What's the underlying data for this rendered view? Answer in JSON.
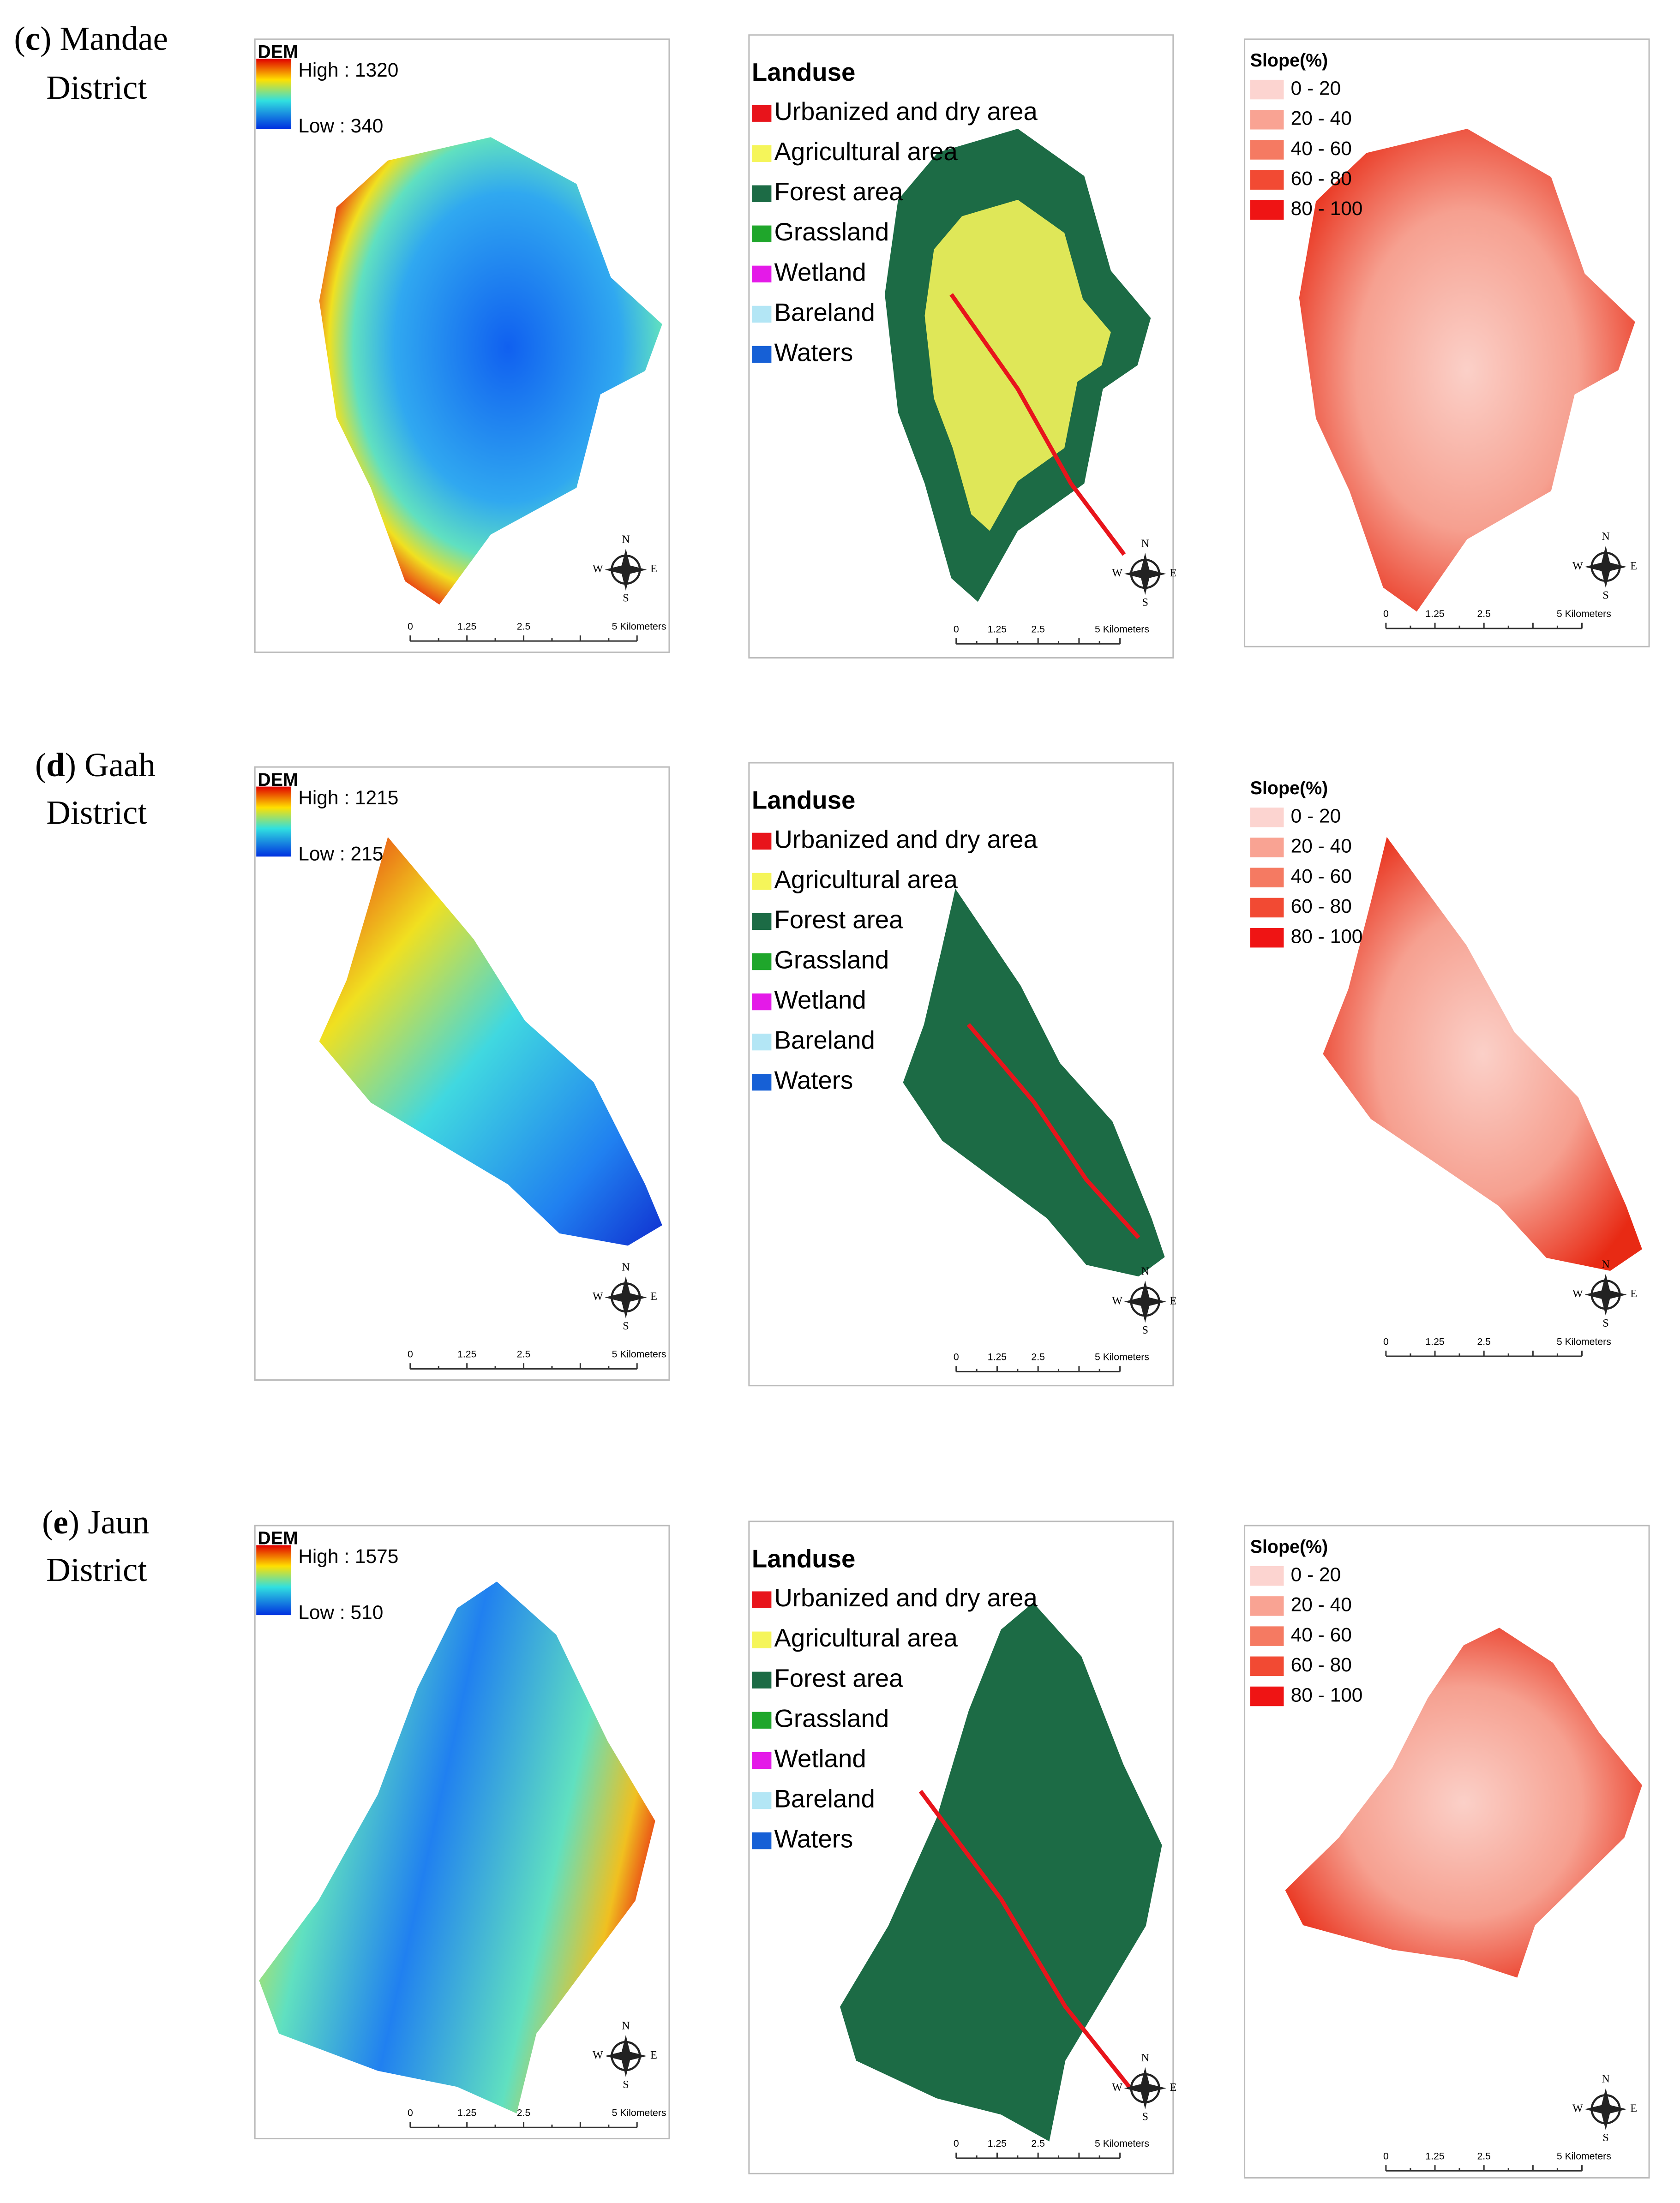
{
  "panels": [
    {
      "label": {
        "open": "(",
        "letter": "c",
        "rest": ") Mandae",
        "line2": "District"
      },
      "dem": {
        "high": "High : 1320",
        "low": "Low : 340"
      }
    },
    {
      "label": {
        "open": "(",
        "letter": "d",
        "rest": ") Gaah",
        "line2": "District"
      },
      "dem": {
        "high": "High : 1215",
        "low": "Low : 215"
      }
    },
    {
      "label": {
        "open": "(",
        "letter": "e",
        "rest": ") Jaun",
        "line2": "District"
      },
      "dem": {
        "high": "High : 1575",
        "low": "Low : 510"
      }
    }
  ],
  "dem_title": "DEM",
  "landuse": {
    "title": "Landuse",
    "items": [
      {
        "name": "Urbanized and dry area",
        "color": "#e8141b"
      },
      {
        "name": "Agricultural area",
        "color": "#f5f55a"
      },
      {
        "name": "Forest area",
        "color": "#1c6b45"
      },
      {
        "name": "Grassland",
        "color": "#1fa62b"
      },
      {
        "name": "Wetland",
        "color": "#e41ae8"
      },
      {
        "name": "Bareland",
        "color": "#b3e6f5"
      },
      {
        "name": "Waters",
        "color": "#1660d6"
      }
    ]
  },
  "slope": {
    "title": "Slope(%)",
    "items": [
      {
        "name": "0  -  20",
        "color": "#fcd4d0"
      },
      {
        "name": "20  -  40",
        "color": "#f9a393"
      },
      {
        "name": "40  -  60",
        "color": "#f57a62"
      },
      {
        "name": "60  -  80",
        "color": "#f24a33"
      },
      {
        "name": "80  -  100",
        "color": "#ef1414"
      }
    ]
  },
  "scale": [
    "0",
    "1.25",
    "2.5",
    "5 Kilometers"
  ],
  "compass": [
    "N",
    "E",
    "S",
    "W"
  ]
}
